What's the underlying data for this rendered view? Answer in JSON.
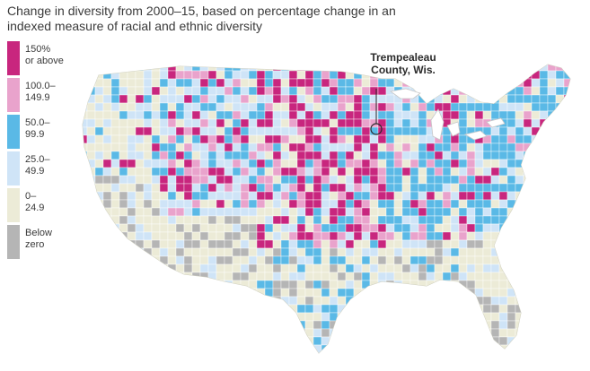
{
  "title": {
    "line1": "Change in diversity from 2000–15, based on percentage change in an",
    "line2": "indexed measure of racial and ethnic diversity"
  },
  "legend": [
    {
      "line1": "150%",
      "line2": "or above",
      "color": "#c8267e"
    },
    {
      "line1": "100.0–",
      "line2": "149.9",
      "color": "#e9a3cc"
    },
    {
      "line1": "50.0–",
      "line2": "99.9",
      "color": "#5ab9e6"
    },
    {
      "line1": "25.0–",
      "line2": "49.9",
      "color": "#cfe4f7"
    },
    {
      "line1": "0–",
      "line2": "24.9",
      "color": "#ecebd7"
    },
    {
      "line1": "Below",
      "line2": "zero",
      "color": "#b5b5b5"
    }
  ],
  "callout": {
    "line1": "Trempealeau",
    "line2": "County, Wis."
  },
  "map": {
    "region": "Contiguous United States, county level",
    "border_color": "#ffffff",
    "land_base_color": "#ecebd7"
  }
}
